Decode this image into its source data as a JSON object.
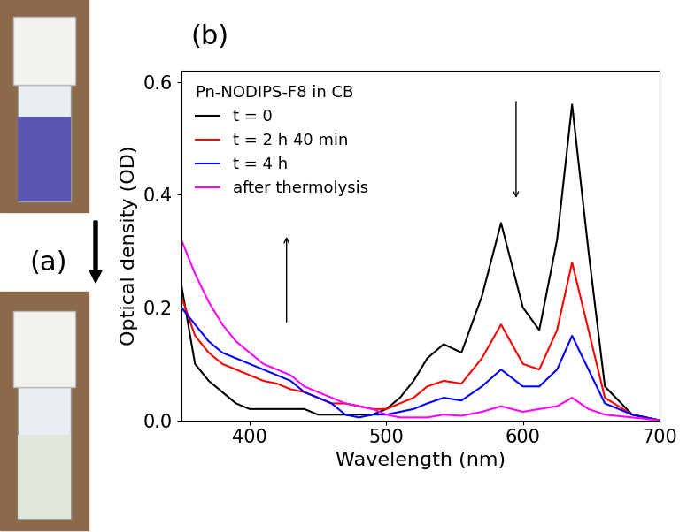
{
  "chart_data": {
    "type": "line",
    "annotations": [
      "(a)",
      "(b)"
    ],
    "legend_title": "Pn-NODIPS-F8 in CB",
    "x_label": "Wavelength (nm)",
    "y_label": "Optical density (OD)",
    "x": [
      350,
      360,
      370,
      380,
      390,
      400,
      410,
      420,
      430,
      440,
      450,
      460,
      470,
      480,
      490,
      500,
      510,
      520,
      530,
      542,
      555,
      570,
      584,
      600,
      612,
      625,
      636,
      648,
      660,
      680,
      700
    ],
    "series": [
      {
        "name": "t = 0",
        "color": "#000000",
        "values": [
          0.24,
          0.1,
          0.07,
          0.05,
          0.03,
          0.02,
          0.02,
          0.02,
          0.02,
          0.02,
          0.01,
          0.01,
          0.01,
          0.01,
          0.01,
          0.02,
          0.04,
          0.07,
          0.11,
          0.135,
          0.12,
          0.22,
          0.35,
          0.2,
          0.16,
          0.32,
          0.56,
          0.3,
          0.06,
          0.01,
          0.0
        ]
      },
      {
        "name": "t = 2 h 40 min",
        "color": "#ff0000",
        "values": [
          0.22,
          0.15,
          0.12,
          0.1,
          0.09,
          0.08,
          0.07,
          0.065,
          0.055,
          0.05,
          0.04,
          0.03,
          0.03,
          0.025,
          0.02,
          0.02,
          0.03,
          0.04,
          0.06,
          0.07,
          0.065,
          0.11,
          0.17,
          0.1,
          0.09,
          0.16,
          0.28,
          0.16,
          0.04,
          0.01,
          0.0
        ]
      },
      {
        "name": "t = 4 h",
        "color": "#0000ff",
        "values": [
          0.2,
          0.17,
          0.14,
          0.12,
          0.11,
          0.1,
          0.09,
          0.08,
          0.07,
          0.05,
          0.04,
          0.03,
          0.01,
          0.005,
          0.01,
          0.01,
          0.015,
          0.02,
          0.03,
          0.04,
          0.035,
          0.06,
          0.09,
          0.06,
          0.06,
          0.09,
          0.15,
          0.09,
          0.03,
          0.01,
          0.0
        ]
      },
      {
        "name": "after thermolysis",
        "color": "#ff00ff",
        "values": [
          0.32,
          0.26,
          0.21,
          0.17,
          0.14,
          0.12,
          0.1,
          0.09,
          0.08,
          0.06,
          0.05,
          0.04,
          0.03,
          0.025,
          0.02,
          0.01,
          0.005,
          0.005,
          0.005,
          0.01,
          0.008,
          0.015,
          0.025,
          0.015,
          0.02,
          0.025,
          0.04,
          0.02,
          0.01,
          0.005,
          0.0
        ]
      }
    ],
    "xlim": [
      350,
      700
    ],
    "xticks": [
      400,
      500,
      600,
      700
    ],
    "ylim": [
      0,
      0.62
    ],
    "yticks": [
      0.0,
      0.2,
      0.4,
      0.6
    ],
    "legend": "upper left",
    "grid": false
  }
}
